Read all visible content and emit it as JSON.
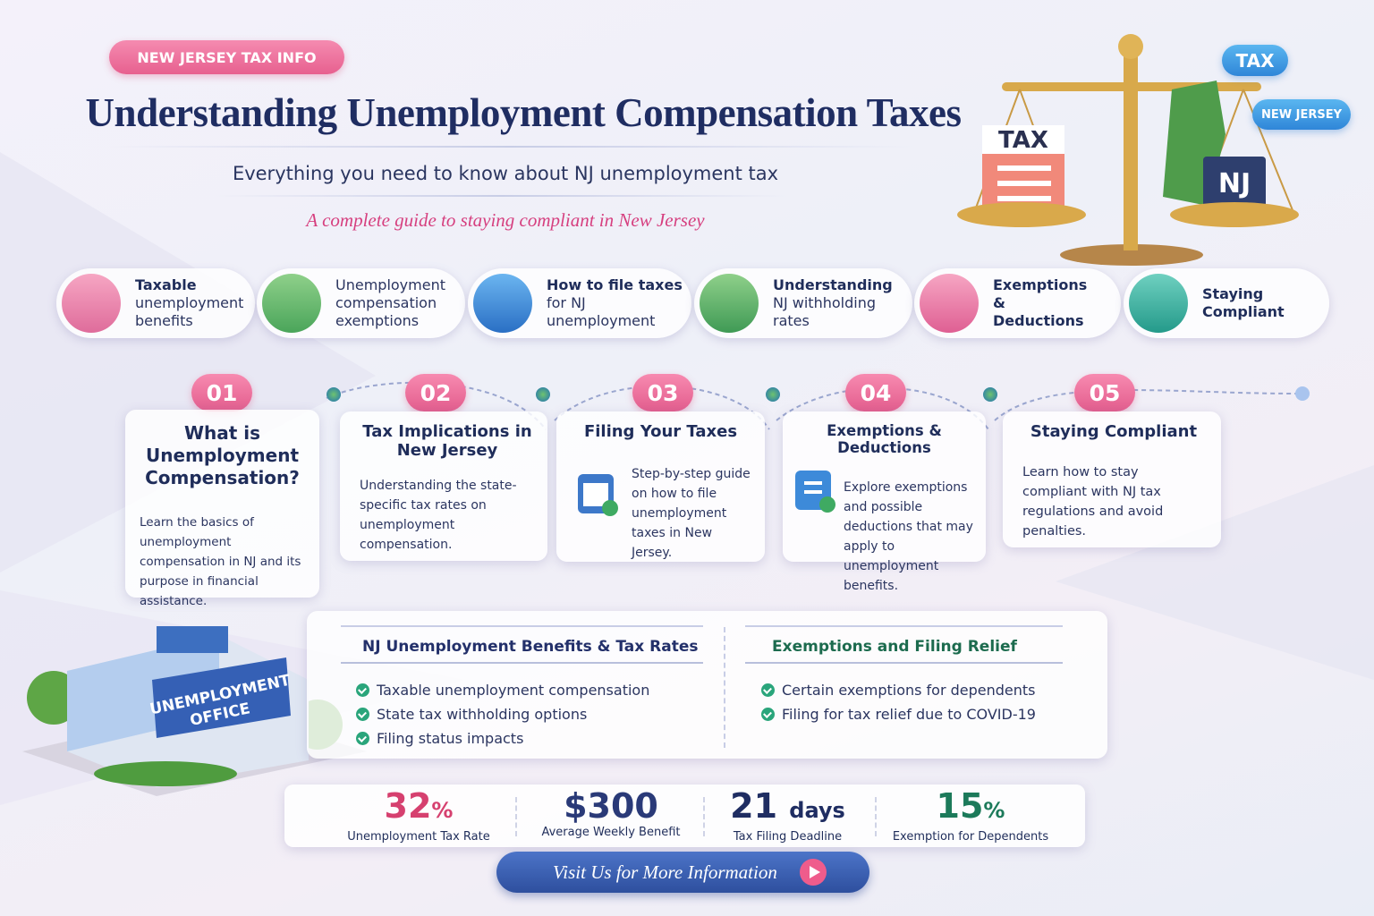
{
  "header": {
    "badge": "NEW JERSEY TAX INFO",
    "title": "Understanding Unemployment Compensation Taxes",
    "subtitle": "Everything you need to know about NJ unemployment tax",
    "tagline": "A complete guide to staying compliant in New Jersey"
  },
  "illustration": {
    "tags": [
      "TAX",
      "NEW JERSEY"
    ],
    "scale_labels": [
      "TAX",
      "NJ"
    ],
    "building_sign": [
      "UNEMPLOYMENT",
      "OFFICE"
    ]
  },
  "topics": [
    {
      "title": "Taxable",
      "text": "unemployment benefits"
    },
    {
      "text": "Unemployment compensation exemptions"
    },
    {
      "title": "How to file taxes",
      "text": "for NJ unemployment"
    },
    {
      "title": "Understanding",
      "text": "NJ withholding rates"
    },
    {
      "title": "Exemptions & Deductions"
    },
    {
      "title": "Staying Compliant"
    }
  ],
  "steps": [
    {
      "number": "01",
      "title": "What is Unemployment Compensation?",
      "text": "Learn the basics of unemployment compensation in NJ and its purpose in financial assistance."
    },
    {
      "number": "02",
      "title": "Tax Implications in New Jersey",
      "text": "Understanding the state-specific tax rates on unemployment compensation."
    },
    {
      "number": "03",
      "title": "Filing Your Taxes",
      "text": "Step-by-step guide on how to file unemployment taxes in New Jersey."
    },
    {
      "number": "04",
      "title": "Exemptions & Deductions",
      "text": "Explore exemptions and possible deductions that may apply to unemployment benefits."
    },
    {
      "number": "05",
      "title": "Staying Compliant",
      "text": "Learn how to stay compliant with NJ tax regulations and avoid penalties."
    }
  ],
  "panels": [
    {
      "title": "NJ Unemployment Benefits & Tax Rates",
      "items": [
        "Taxable unemployment compensation",
        "State tax withholding options",
        "Filing status impacts"
      ]
    },
    {
      "title": "Exemptions and Filing Relief",
      "items": [
        "Certain exemptions for dependents",
        "Filing for tax relief due to COVID-19"
      ]
    }
  ],
  "stats": [
    {
      "value": "32",
      "unit": "%",
      "label": "Unemployment Tax Rate"
    },
    {
      "value": "$300",
      "label": "Average Weekly Benefit"
    },
    {
      "value": "21",
      "unit": "days",
      "label": "Tax Filing Deadline"
    },
    {
      "value": "15",
      "unit": "%",
      "label": "Exemption for Dependents"
    }
  ],
  "cta": "Visit Us for More Information"
}
